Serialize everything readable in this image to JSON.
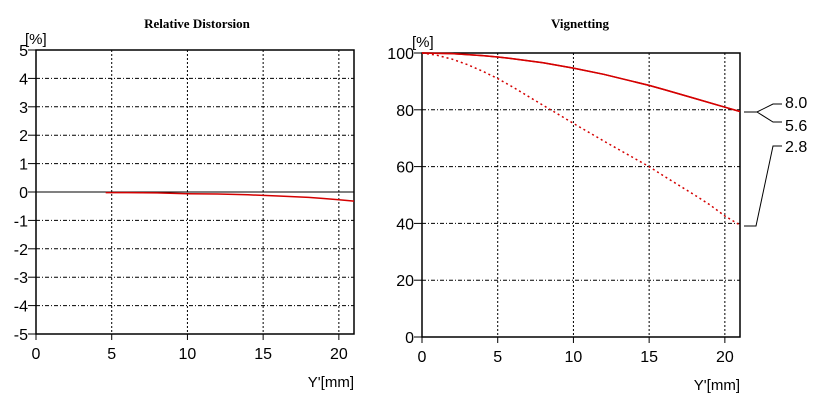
{
  "chart_data": [
    {
      "type": "line",
      "title": "Relative Distorsion",
      "xlabel": "Y'[mm]",
      "ylabel": "[%]",
      "xlim": [
        0,
        21
      ],
      "ylim": [
        -5,
        5
      ],
      "xticks": [
        0,
        5,
        10,
        15,
        20
      ],
      "xtick_labels": [
        "0",
        "5",
        "10",
        "15",
        "20"
      ],
      "yticks": [
        5,
        4,
        3,
        2,
        1,
        0,
        -1,
        -2,
        -3,
        -4,
        -5
      ],
      "ytick_labels": [
        "5",
        "4",
        "3",
        "2",
        "1",
        "0",
        "-1",
        "-2",
        "-3",
        "-4",
        "-5"
      ],
      "grid": true,
      "series": [
        {
          "name": "distortion",
          "color": "#d40000",
          "style": "solid",
          "x": [
            4.6,
            6,
            8,
            10,
            12,
            14,
            16,
            18,
            19,
            20,
            21
          ],
          "y": [
            -0.02,
            -0.02,
            -0.03,
            -0.06,
            -0.07,
            -0.1,
            -0.14,
            -0.19,
            -0.23,
            -0.27,
            -0.32
          ]
        }
      ]
    },
    {
      "type": "line",
      "title": "Vignetting",
      "xlabel": "Y'[mm]",
      "ylabel": "[%]",
      "xlim": [
        0,
        21
      ],
      "ylim": [
        0,
        100
      ],
      "xticks": [
        0,
        5,
        10,
        15,
        20
      ],
      "xtick_labels": [
        "0",
        "5",
        "10",
        "15",
        "20"
      ],
      "yticks": [
        100,
        80,
        60,
        40,
        20,
        0
      ],
      "ytick_labels": [
        "100",
        "80",
        "60",
        "40",
        "20",
        "0"
      ],
      "grid": true,
      "legend_position": "right",
      "series": [
        {
          "name": "8.0",
          "color": "#d40000",
          "style": "solid",
          "x": [
            0,
            2,
            4,
            5,
            6,
            8,
            10,
            12,
            14,
            15,
            16,
            18,
            20,
            21
          ],
          "y": [
            100,
            99.8,
            99.1,
            98.6,
            98,
            96.6,
            94.7,
            92.5,
            89.9,
            88.6,
            87.1,
            84,
            80.9,
            79.4
          ]
        },
        {
          "name": "5.6",
          "color": "#d40000",
          "style": "solid",
          "x": [
            0,
            2,
            4,
            5,
            6,
            8,
            10,
            12,
            14,
            15,
            16,
            18,
            20,
            21
          ],
          "y": [
            100,
            99.8,
            99.1,
            98.6,
            98,
            96.6,
            94.7,
            92.5,
            89.9,
            88.6,
            87.1,
            84,
            80.9,
            79.4
          ]
        },
        {
          "name": "2.8",
          "color": "#d40000",
          "style": "dotted",
          "x": [
            0,
            1,
            2,
            3,
            4,
            5,
            6,
            7,
            8,
            9,
            10,
            11,
            12,
            13,
            14,
            15,
            16,
            17,
            18,
            19,
            20,
            21
          ],
          "y": [
            100,
            99.2,
            97.8,
            95.9,
            93.6,
            91,
            88,
            84.8,
            81.6,
            78.4,
            75.2,
            72.1,
            69,
            66,
            63,
            60,
            56.6,
            53.3,
            50,
            46.6,
            42.6,
            39.4
          ]
        }
      ],
      "legend_entries": [
        "8.0",
        "5.6",
        "2.8"
      ]
    }
  ]
}
